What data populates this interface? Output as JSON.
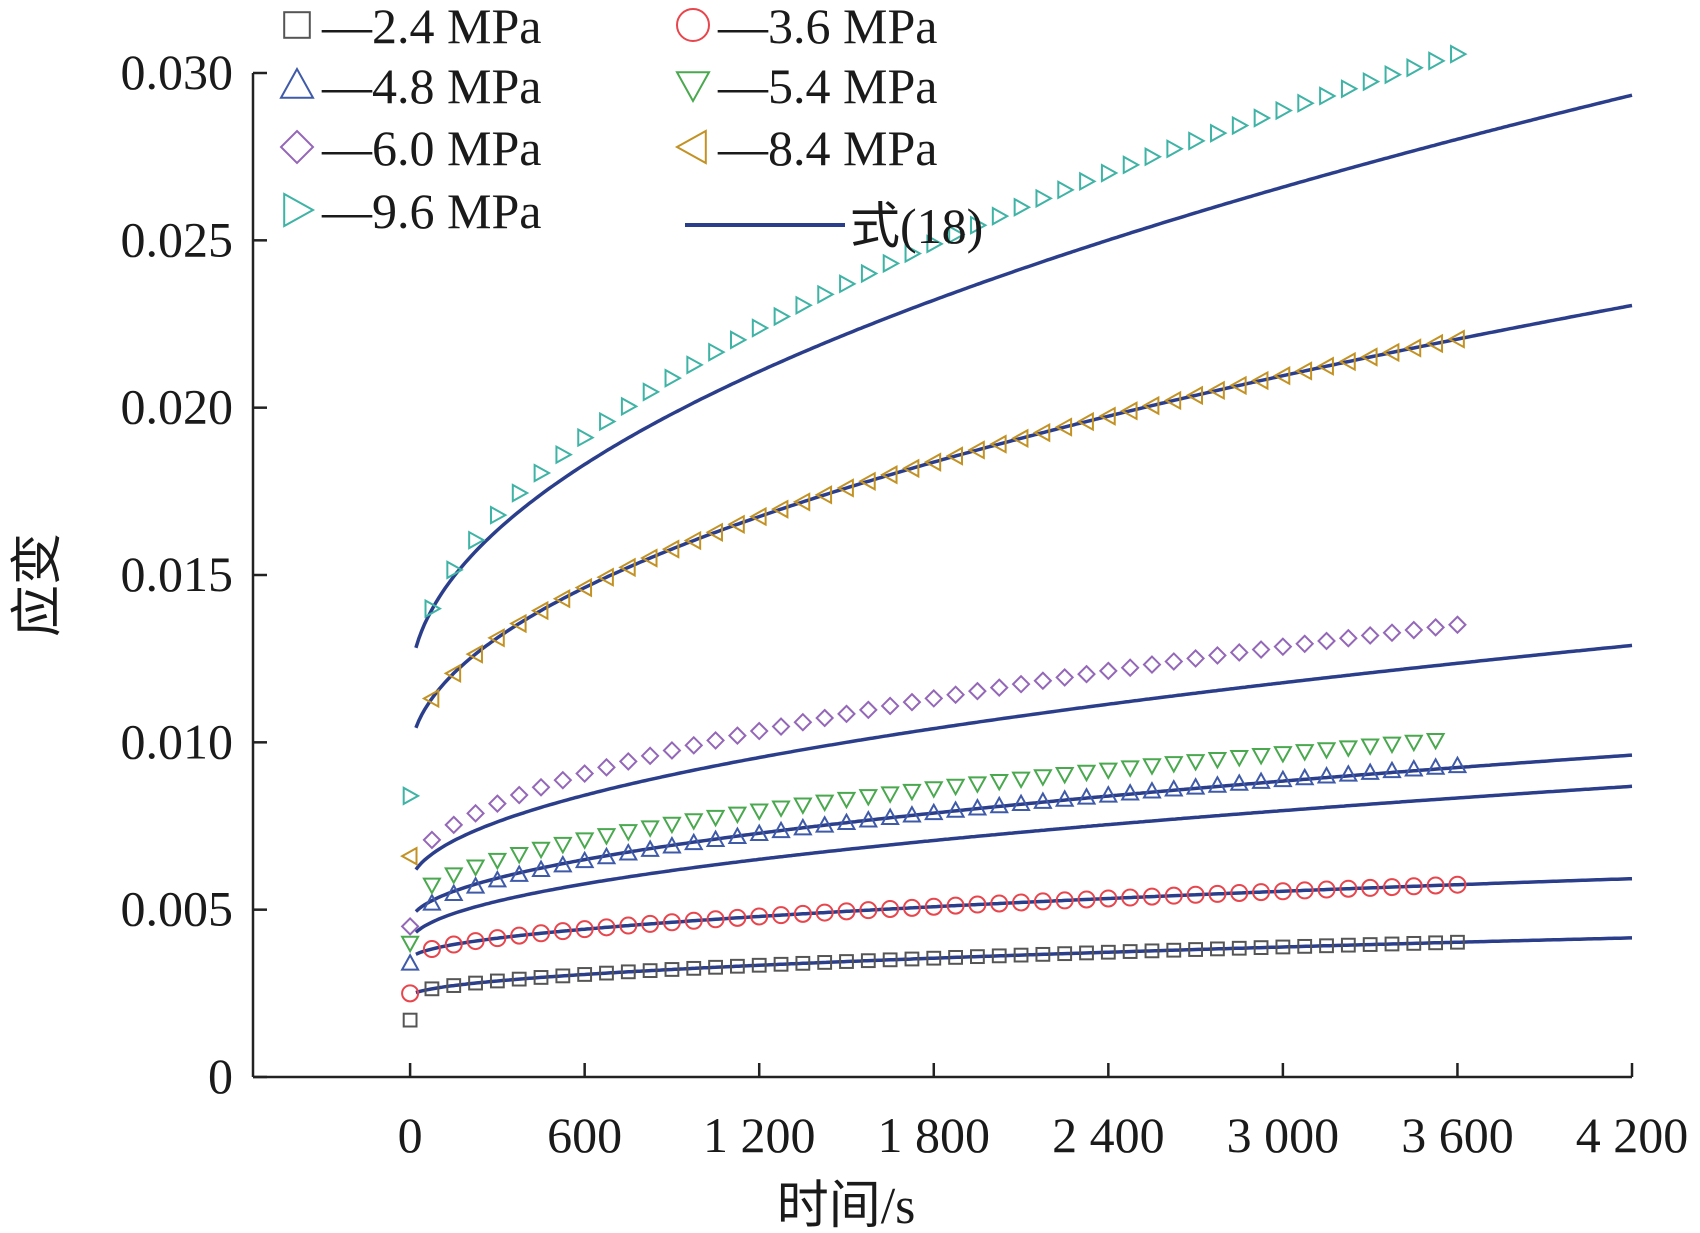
{
  "chart_data": {
    "type": "scatter",
    "xlabel": "时间/s",
    "ylabel": "应变",
    "xlim": [
      -540,
      4200
    ],
    "ylim": [
      0,
      0.03
    ],
    "x_ticks": [
      0,
      600,
      1200,
      1800,
      2400,
      3000,
      3600,
      4200
    ],
    "x_tick_labels": [
      "0",
      "600",
      "1 200",
      "1 800",
      "2 400",
      "3 000",
      "3 600",
      "4 200"
    ],
    "y_ticks": [
      0,
      0.005,
      0.01,
      0.015,
      0.02,
      0.025,
      0.03
    ],
    "y_tick_labels": [
      "0",
      "0.005",
      "0.010",
      "0.015",
      "0.020",
      "0.025",
      "0.030"
    ],
    "grid": false,
    "legend_position": "top-left",
    "time_points": [
      0,
      75,
      150,
      225,
      300,
      375,
      450,
      525,
      600,
      675,
      750,
      825,
      900,
      975,
      1050,
      1125,
      1200,
      1275,
      1350,
      1425,
      1500,
      1575,
      1650,
      1725,
      1800,
      1875,
      1950,
      2025,
      2100,
      2175,
      2250,
      2325,
      2400,
      2475,
      2550,
      2625,
      2700,
      2775,
      2850,
      2925,
      3000,
      3075,
      3150,
      3225,
      3300,
      3375,
      3450,
      3525,
      3600
    ],
    "series": [
      {
        "name": "—2.4 MPa",
        "marker": "square",
        "color": "#555555",
        "t_end": 3600,
        "start": 0.0017,
        "a": 0.0024,
        "b": 0.00021,
        "p": 0.5
      },
      {
        "name": "—3.6 MPa",
        "marker": "circle",
        "color": "#e8454c",
        "t_end": 3600,
        "start": 0.0025,
        "a": 0.0035,
        "b": 0.00029,
        "p": 0.5
      },
      {
        "name": "—4.8 MPa",
        "marker": "triangle-up",
        "color": "#3f5aa8",
        "t_end": 3600,
        "start": 0.0034,
        "a": 0.0045,
        "b": 0.00062,
        "p": 0.5
      },
      {
        "name": "—5.4 MPa",
        "marker": "triangle-down",
        "color": "#4aa84f",
        "t_end": 3525,
        "start": 0.004,
        "a": 0.005,
        "b": 0.00066,
        "p": 0.5
      },
      {
        "name": "—6.0 MPa",
        "marker": "diamond",
        "color": "#9467b8",
        "t_end": 3600,
        "start": 0.0045,
        "a": 0.006,
        "b": 0.00097,
        "p": 0.5
      },
      {
        "name": "—8.4 MPa",
        "marker": "triangle-left",
        "color": "#c39224",
        "t_end": 3600,
        "start": 0.0066,
        "a": 0.0095,
        "b": 0.00162,
        "p": 0.5
      },
      {
        "name": "—9.6 MPa",
        "marker": "triangle-right",
        "color": "#3fb3a5",
        "t_end": 3600,
        "start": 0.0084,
        "a": 0.0112,
        "b": 0.0025,
        "p": 0.5
      }
    ],
    "fit": {
      "name": "式(18)",
      "color": "#2b3e8c",
      "t_start": 20,
      "t_end": 4200,
      "curves": [
        {
          "a": 0.0024,
          "b": 0.00021
        },
        {
          "a": 0.0035,
          "b": 0.00029
        },
        {
          "a": 0.004,
          "b": 0.00056
        },
        {
          "a": 0.0046,
          "b": 0.0006
        },
        {
          "a": 0.0057,
          "b": 0.00086
        },
        {
          "a": 0.0095,
          "b": 0.00162
        },
        {
          "a": 0.0116,
          "b": 0.00212
        }
      ]
    }
  }
}
